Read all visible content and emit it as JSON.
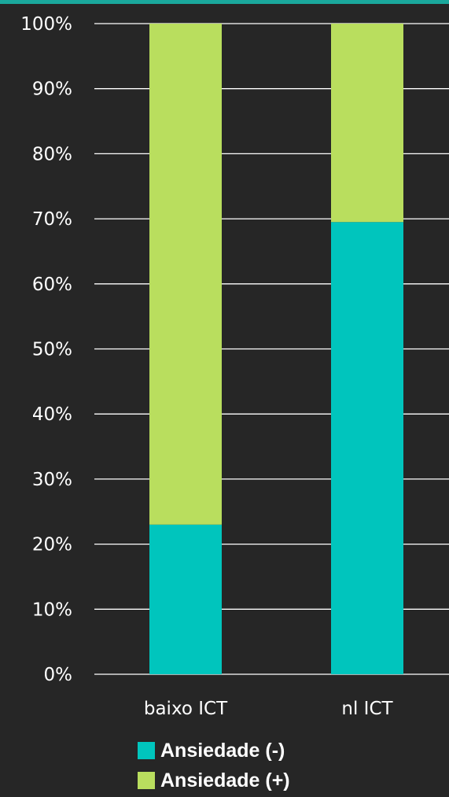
{
  "colors": {
    "background": "#262626",
    "accent_bar": "#1aa89c",
    "gridline": "#ffffff",
    "text": "#ffffff"
  },
  "chart_data": {
    "type": "bar",
    "stacked": true,
    "categories": [
      "baixo ICT",
      "nl ICT"
    ],
    "series": [
      {
        "name": "Ansiedade (-)",
        "color": "#00c5bd",
        "values": [
          23,
          69.5
        ]
      },
      {
        "name": "Ansiedade (+)",
        "color": "#b9de5e",
        "values": [
          77,
          30.5
        ]
      }
    ],
    "ylim": [
      0,
      100
    ],
    "yticks": [
      "0%",
      "10%",
      "20%",
      "30%",
      "40%",
      "50%",
      "60%",
      "70%",
      "80%",
      "90%",
      "100%"
    ],
    "grid": true,
    "legend_position": "bottom"
  }
}
